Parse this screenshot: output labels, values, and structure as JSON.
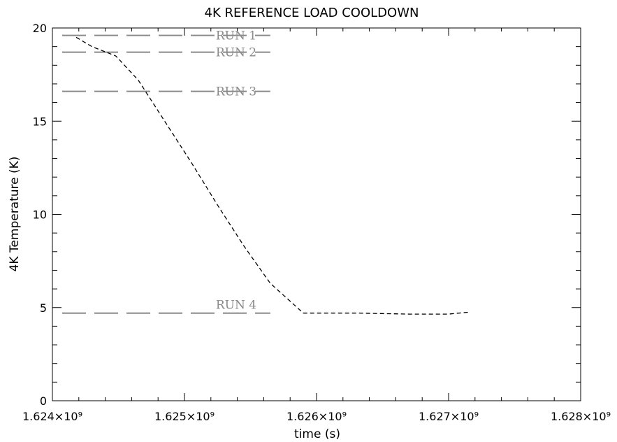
{
  "chart_data": {
    "type": "line",
    "title": "4K REFERENCE LOAD COOLDOWN",
    "xlabel": "time (s)",
    "ylabel": "4K Temperature (K)",
    "xlim": [
      1624000000,
      1628000000
    ],
    "ylim": [
      0,
      20
    ],
    "x_ticks": [
      {
        "value": 1624000000,
        "label": "1.624×10⁹"
      },
      {
        "value": 1625000000,
        "label": "1.625×10⁹"
      },
      {
        "value": 1626000000,
        "label": "1.626×10⁹"
      },
      {
        "value": 1627000000,
        "label": "1.627×10⁹"
      },
      {
        "value": 1628000000,
        "label": "1.628×10⁹"
      }
    ],
    "y_ticks": [
      {
        "value": 0,
        "label": "0"
      },
      {
        "value": 5,
        "label": "5"
      },
      {
        "value": 10,
        "label": "10"
      },
      {
        "value": 15,
        "label": "15"
      },
      {
        "value": 20,
        "label": "20"
      }
    ],
    "grid": false,
    "series": [
      {
        "style": "dashed",
        "color": "#000000",
        "points": [
          [
            1624180000,
            19.5
          ],
          [
            1624300000,
            19.0
          ],
          [
            1624480000,
            18.5
          ],
          [
            1624650000,
            17.2
          ],
          [
            1624850000,
            15.0
          ],
          [
            1625050000,
            12.8
          ],
          [
            1625250000,
            10.5
          ],
          [
            1625450000,
            8.3
          ],
          [
            1625650000,
            6.3
          ],
          [
            1625900000,
            4.7
          ],
          [
            1626300000,
            4.7
          ],
          [
            1626700000,
            4.65
          ],
          [
            1627000000,
            4.65
          ],
          [
            1627150000,
            4.75
          ]
        ]
      }
    ],
    "reference_lines": [
      {
        "label": "RUN 1",
        "y": 19.6,
        "x_range": [
          1624000000,
          1625650000
        ],
        "color": "#8a8a8a"
      },
      {
        "label": "RUN 2",
        "y": 18.7,
        "x_range": [
          1624000000,
          1625650000
        ],
        "color": "#8a8a8a"
      },
      {
        "label": "RUN 3",
        "y": 16.6,
        "x_range": [
          1624000000,
          1625650000
        ],
        "color": "#8a8a8a"
      },
      {
        "label": "RUN 4",
        "y": 4.7,
        "x_range": [
          1624000000,
          1625650000
        ],
        "color": "#8a8a8a"
      }
    ]
  }
}
